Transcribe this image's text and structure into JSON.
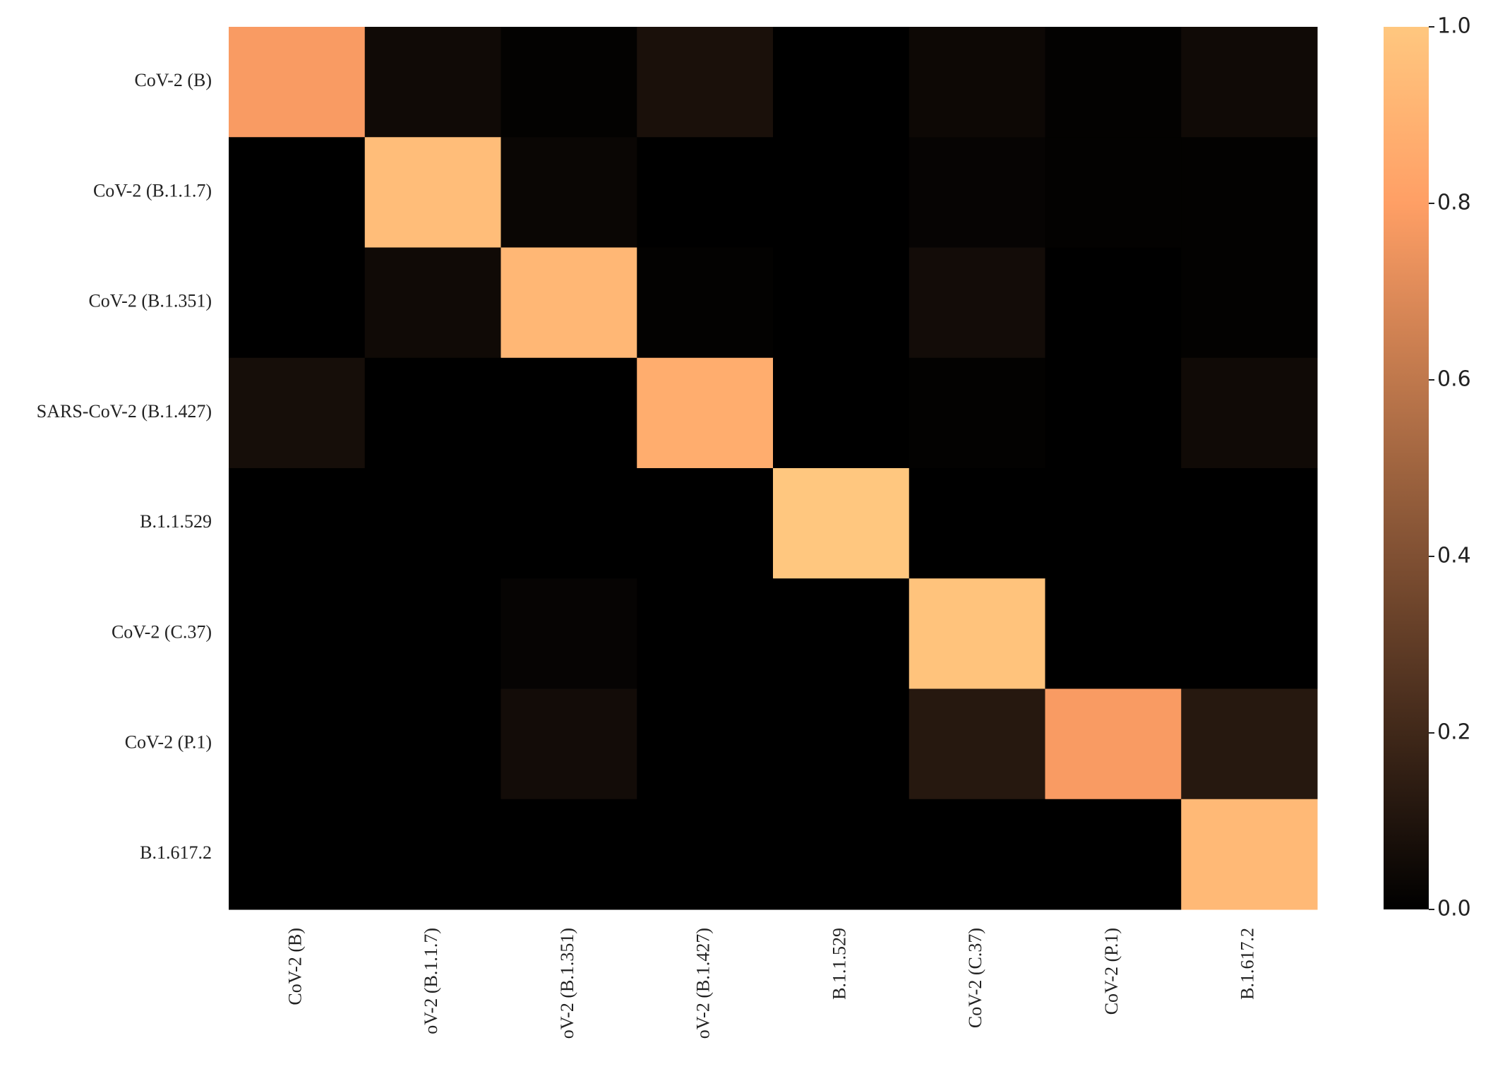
{
  "chart_data": {
    "type": "heatmap",
    "colormap": "copper",
    "rows": [
      "CoV-2 (B)",
      "CoV-2 (B.1.1.7)",
      "CoV-2 (B.1.351)",
      "SARS-CoV-2 (B.1.427)",
      "B.1.1.529",
      "CoV-2 (C.37)",
      "CoV-2 (P.1)",
      "B.1.617.2"
    ],
    "columns": [
      "CoV-2 (B)",
      "oV-2 (B.1.1.7)",
      "oV-2 (B.1.351)",
      "oV-2 (B.1.427)",
      "B.1.1.529",
      "CoV-2 (C.37)",
      "CoV-2 (P.1)",
      "B.1.617.2"
    ],
    "values": [
      [
        0.78,
        0.05,
        0.01,
        0.08,
        0.0,
        0.04,
        0.01,
        0.05
      ],
      [
        0.0,
        0.95,
        0.03,
        0.0,
        0.0,
        0.02,
        0.01,
        0.01
      ],
      [
        0.0,
        0.05,
        0.92,
        0.01,
        0.0,
        0.06,
        0.0,
        0.01
      ],
      [
        0.07,
        0.0,
        0.0,
        0.87,
        0.0,
        0.01,
        0.0,
        0.05
      ],
      [
        0.0,
        0.0,
        0.0,
        0.0,
        1.0,
        0.0,
        0.0,
        0.0
      ],
      [
        0.0,
        0.0,
        0.02,
        0.0,
        0.0,
        0.98,
        0.0,
        0.0
      ],
      [
        0.0,
        0.0,
        0.06,
        0.0,
        0.0,
        0.12,
        0.78,
        0.12
      ],
      [
        0.0,
        0.0,
        0.0,
        0.0,
        0.0,
        0.0,
        0.0,
        0.93
      ]
    ],
    "vlim": [
      0,
      1
    ],
    "colorbar_ticks": [
      {
        "value": 0,
        "label": "0.0"
      },
      0.2,
      0.4,
      0.6,
      0.8,
      {
        "value": 1,
        "label": "1.0"
      }
    ]
  }
}
